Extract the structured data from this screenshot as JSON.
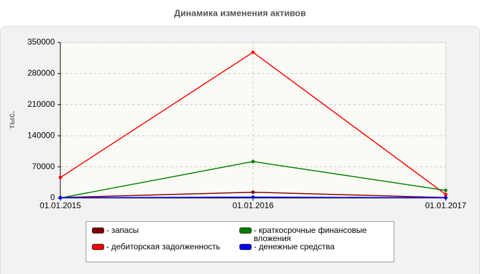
{
  "chart_data": {
    "type": "line",
    "title": "Динамика изменения активов",
    "y_label": "тыс.",
    "categories": [
      "01.01.2015",
      "01.01.2016",
      "01.01.2017"
    ],
    "series": [
      {
        "name": "- запасы",
        "color": "#800000",
        "values": [
          1000,
          13000,
          1000
        ]
      },
      {
        "name": "- дебиторская задолженность",
        "color": "#ff0000",
        "values": [
          46000,
          328000,
          8000
        ]
      },
      {
        "name": "- краткосрочные финансовые вложения",
        "color": "#008000",
        "values": [
          0,
          82000,
          17000
        ]
      },
      {
        "name": "- денежные средства",
        "color": "#0000ff",
        "values": [
          500,
          2000,
          500
        ]
      }
    ],
    "ylim": [
      0,
      350000
    ],
    "yticks": [
      0,
      70000,
      140000,
      210000,
      280000,
      350000
    ],
    "grid": true
  }
}
